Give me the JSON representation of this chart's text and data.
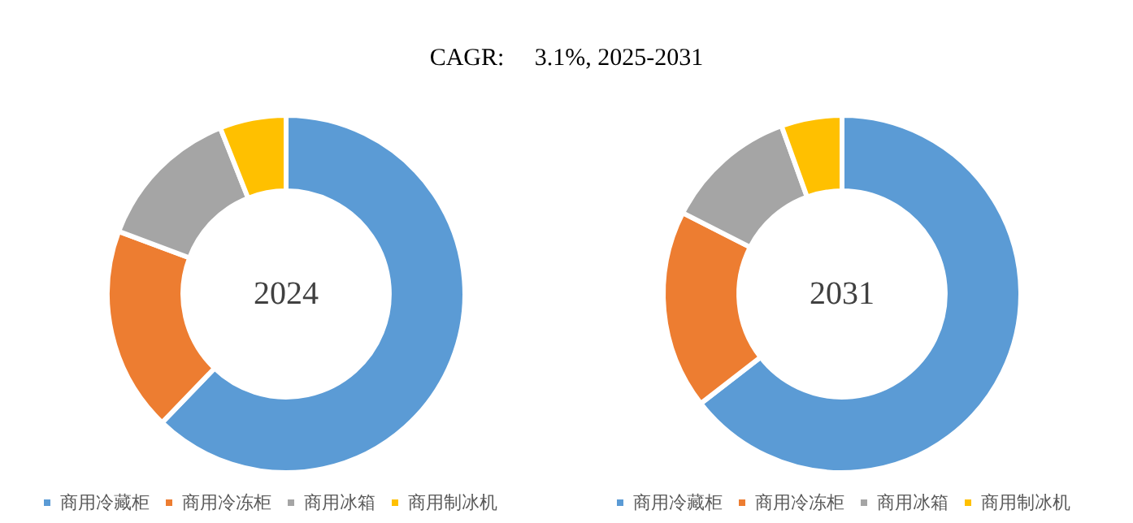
{
  "chart_data": [
    {
      "type": "donut",
      "title": "CAGR:     3.1%, 2025-2031",
      "annotations": [
        "2024"
      ],
      "categories": [
        "商用冷藏柜",
        "商用冷冻柜",
        "商用冰箱",
        "商用制冰机"
      ],
      "values": [
        62.2,
        18.5,
        13.3,
        6.0
      ],
      "colors": [
        "#5b9bd5",
        "#ed7d31",
        "#a5a5a5",
        "#ffc000"
      ],
      "legend": "bottom left"
    },
    {
      "type": "donut",
      "annotations": [
        "2031"
      ],
      "categories": [
        "商用冷藏柜",
        "商用冷冻柜",
        "商用冰箱",
        "商用制冰机"
      ],
      "values": [
        64.5,
        18.0,
        12.0,
        5.5
      ],
      "colors": [
        "#5b9bd5",
        "#ed7d31",
        "#a5a5a5",
        "#ffc000"
      ],
      "legend": "bottom"
    }
  ]
}
